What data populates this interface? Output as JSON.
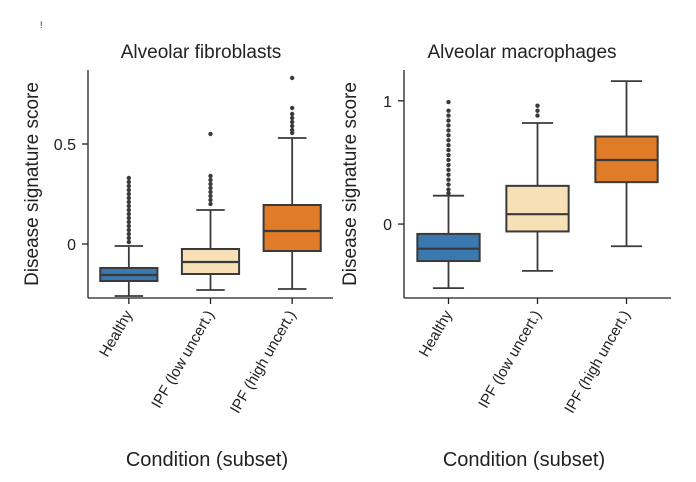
{
  "chart_data": [
    {
      "type": "box",
      "title": "Alveolar fibroblasts",
      "xlabel": "Condition (subset)",
      "ylabel": "Disease signature score",
      "ylim": [
        -0.27,
        0.87
      ],
      "yticks": [
        0,
        0.5
      ],
      "ytick_labels": [
        "0",
        "0.5"
      ],
      "categories": [
        "Healthy",
        "IPF (low uncert.)",
        "IPF (high uncert.)"
      ],
      "colors": [
        "#3a78b0",
        "#f7e0b6",
        "#e07b27"
      ],
      "boxes": [
        {
          "whislo": -0.26,
          "q1": -0.185,
          "med": -0.155,
          "q3": -0.12,
          "whishi": -0.01,
          "fliers": [
            0.33,
            0.31,
            0.29,
            0.27,
            0.25,
            0.23,
            0.21,
            0.19,
            0.17,
            0.15,
            0.13,
            0.11,
            0.09,
            0.07,
            0.05,
            0.03,
            0.01
          ]
        },
        {
          "whislo": -0.23,
          "q1": -0.15,
          "med": -0.09,
          "q3": -0.025,
          "whishi": 0.17,
          "fliers": [
            0.55,
            0.34,
            0.32,
            0.3,
            0.28,
            0.26,
            0.24,
            0.22,
            0.2
          ]
        },
        {
          "whislo": -0.225,
          "q1": -0.035,
          "med": 0.065,
          "q3": 0.195,
          "whishi": 0.53,
          "fliers": [
            0.83,
            0.68,
            0.65,
            0.63,
            0.61,
            0.59,
            0.57,
            0.555
          ]
        }
      ]
    },
    {
      "type": "box",
      "title": "Alveolar macrophages",
      "xlabel": "Condition (subset)",
      "ylabel": "Disease signature score",
      "ylim": [
        -0.6,
        1.25
      ],
      "yticks": [
        0,
        1
      ],
      "ytick_labels": [
        "0",
        "1"
      ],
      "categories": [
        "Healthy",
        "IPF (low uncert.)",
        "IPF (high uncert.)"
      ],
      "colors": [
        "#3a78b0",
        "#f7e0b6",
        "#e07b27"
      ],
      "boxes": [
        {
          "whislo": -0.52,
          "q1": -0.3,
          "med": -0.2,
          "q3": -0.08,
          "whishi": 0.23,
          "fliers": [
            0.99,
            0.92,
            0.88,
            0.84,
            0.8,
            0.76,
            0.72,
            0.68,
            0.64,
            0.6,
            0.56,
            0.52,
            0.48,
            0.44,
            0.4,
            0.36,
            0.32,
            0.28,
            0.25
          ]
        },
        {
          "whislo": -0.38,
          "q1": -0.06,
          "med": 0.08,
          "q3": 0.31,
          "whishi": 0.82,
          "fliers": [
            0.96,
            0.92,
            0.88
          ]
        },
        {
          "whislo": -0.18,
          "q1": 0.34,
          "med": 0.52,
          "q3": 0.71,
          "whishi": 1.16,
          "fliers": []
        }
      ]
    }
  ]
}
